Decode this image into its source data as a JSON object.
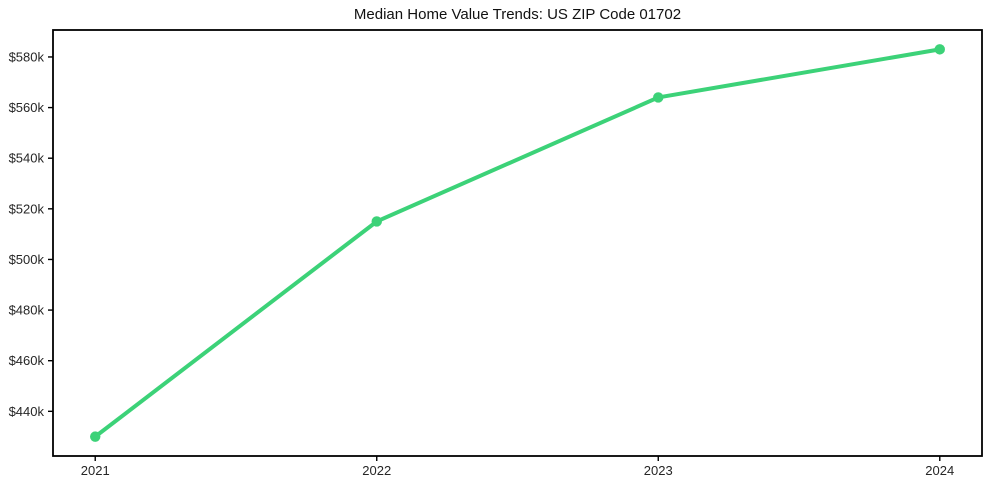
{
  "chart_data": {
    "type": "line",
    "title": "Median Home Value Trends: US ZIP Code 01702",
    "x": [
      2021,
      2022,
      2023,
      2024
    ],
    "series": [
      {
        "name": "Median Home Value",
        "values": [
          430000,
          515000,
          564000,
          583000
        ]
      }
    ],
    "x_tick_labels": [
      "2021",
      "2022",
      "2023",
      "2024"
    ],
    "y_tick_values": [
      440000,
      460000,
      480000,
      500000,
      520000,
      540000,
      560000,
      580000
    ],
    "y_tick_labels": [
      "$440k",
      "$460k",
      "$480k",
      "$500k",
      "$520k",
      "$540k",
      "$560k",
      "$580k"
    ],
    "xlim": [
      2020.85,
      2024.15
    ],
    "ylim": [
      422350,
      590650
    ],
    "grid": false,
    "legend": "none",
    "line_color": "#3cd278",
    "marker": "circle",
    "axis_color": "#000000",
    "tick_label_color": "#262626",
    "background_color": "#ffffff"
  }
}
